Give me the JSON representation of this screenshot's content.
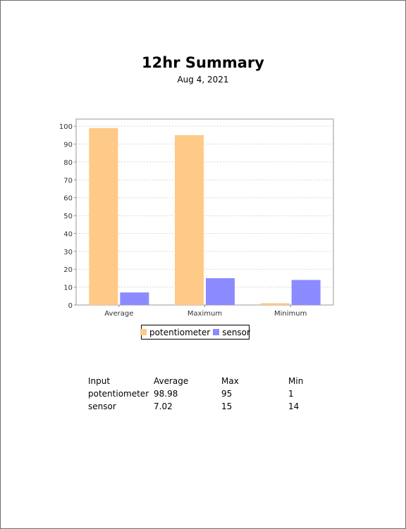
{
  "report": {
    "title": "12hr Summary",
    "date": "Aug 4, 2021"
  },
  "chart_data": {
    "type": "bar",
    "categories": [
      "Average",
      "Maximum",
      "Minimum"
    ],
    "series": [
      {
        "name": "potentiometer",
        "values": [
          98.98,
          95,
          1
        ],
        "color": "#ffc987"
      },
      {
        "name": "sensor",
        "values": [
          7.02,
          15,
          14
        ],
        "color": "#8b8bff"
      }
    ],
    "ylim": [
      0,
      100
    ],
    "yticks": [
      0,
      10,
      20,
      30,
      40,
      50,
      60,
      70,
      80,
      90,
      100
    ],
    "grid": true,
    "legend_position": "bottom"
  },
  "table": {
    "headers": [
      "Input",
      "Average",
      "Max",
      "Min"
    ],
    "rows": [
      [
        "potentiometer",
        "98.98",
        "95",
        "1"
      ],
      [
        "sensor",
        "7.02",
        "15",
        "14"
      ]
    ]
  }
}
